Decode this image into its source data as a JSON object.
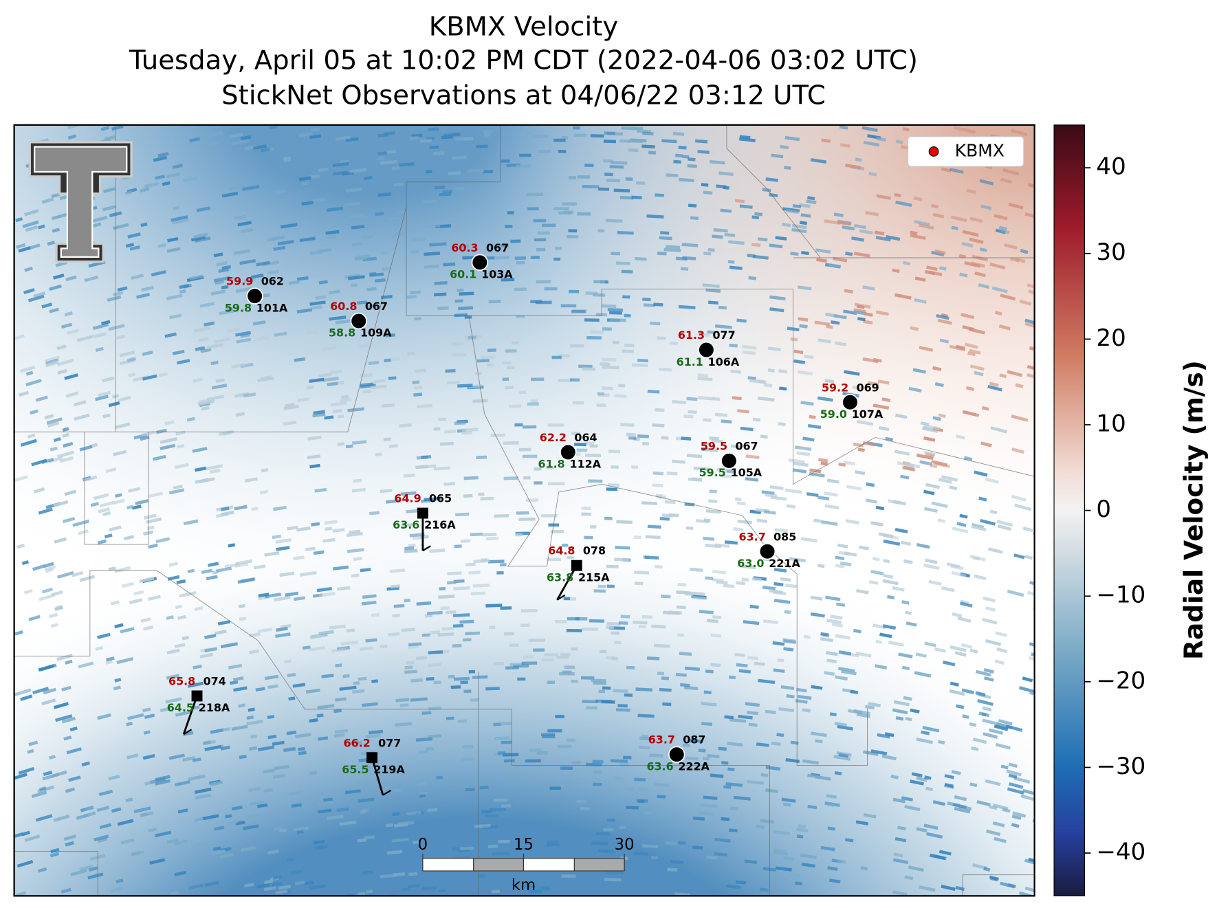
{
  "title": [
    "KBMX Velocity",
    "Tuesday, April 05 at 10:02 PM CDT (2022-04-06 03:02 UTC)",
    "StickNet Observations at 04/06/22 03:12 UTC"
  ],
  "legend": "KBMX",
  "colorbar": {
    "label": "Radial Velocity (m/s)",
    "lim": [
      -45,
      45
    ],
    "ticks": [
      {
        "value": 40,
        "label": "40"
      },
      {
        "value": 30,
        "label": "30"
      },
      {
        "value": 20,
        "label": "20"
      },
      {
        "value": 10,
        "label": "10"
      },
      {
        "value": 0,
        "label": "0"
      },
      {
        "value": -10,
        "label": "−10"
      },
      {
        "value": -20,
        "label": "−20"
      },
      {
        "value": -30,
        "label": "−30"
      },
      {
        "value": -40,
        "label": "−40"
      }
    ]
  },
  "scale_bar": {
    "ticks": [
      0,
      15,
      30
    ],
    "unit": "km"
  },
  "stations": [
    {
      "id": "101A",
      "temperature": "59.9",
      "dewpoint": "59.8",
      "code": "062"
    },
    {
      "id": "109A",
      "temperature": "60.8",
      "dewpoint": "58.8",
      "code": "067"
    },
    {
      "id": "103A",
      "temperature": "60.3",
      "dewpoint": "60.1",
      "code": "067"
    },
    {
      "id": "106A",
      "temperature": "61.3",
      "dewpoint": "61.1",
      "code": "077"
    },
    {
      "id": "107A",
      "temperature": "59.2",
      "dewpoint": "59.0",
      "code": "069"
    },
    {
      "id": "112A",
      "temperature": "62.2",
      "dewpoint": "61.8",
      "code": "064"
    },
    {
      "id": "105A",
      "temperature": "59.5",
      "dewpoint": "59.5",
      "code": "067"
    },
    {
      "id": "216A",
      "temperature": "64.9",
      "dewpoint": "63.6",
      "code": "065"
    },
    {
      "id": "221A",
      "temperature": "63.7",
      "dewpoint": "63.0",
      "code": "085"
    },
    {
      "id": "215A",
      "temperature": "64.8",
      "dewpoint": "63.8",
      "code": "078"
    },
    {
      "id": "218A",
      "temperature": "65.8",
      "dewpoint": "64.5",
      "code": "074"
    },
    {
      "id": "219A",
      "temperature": "66.2",
      "dewpoint": "65.5",
      "code": "077"
    },
    {
      "id": "222A",
      "temperature": "63.7",
      "dewpoint": "63.6",
      "code": "087"
    }
  ]
}
